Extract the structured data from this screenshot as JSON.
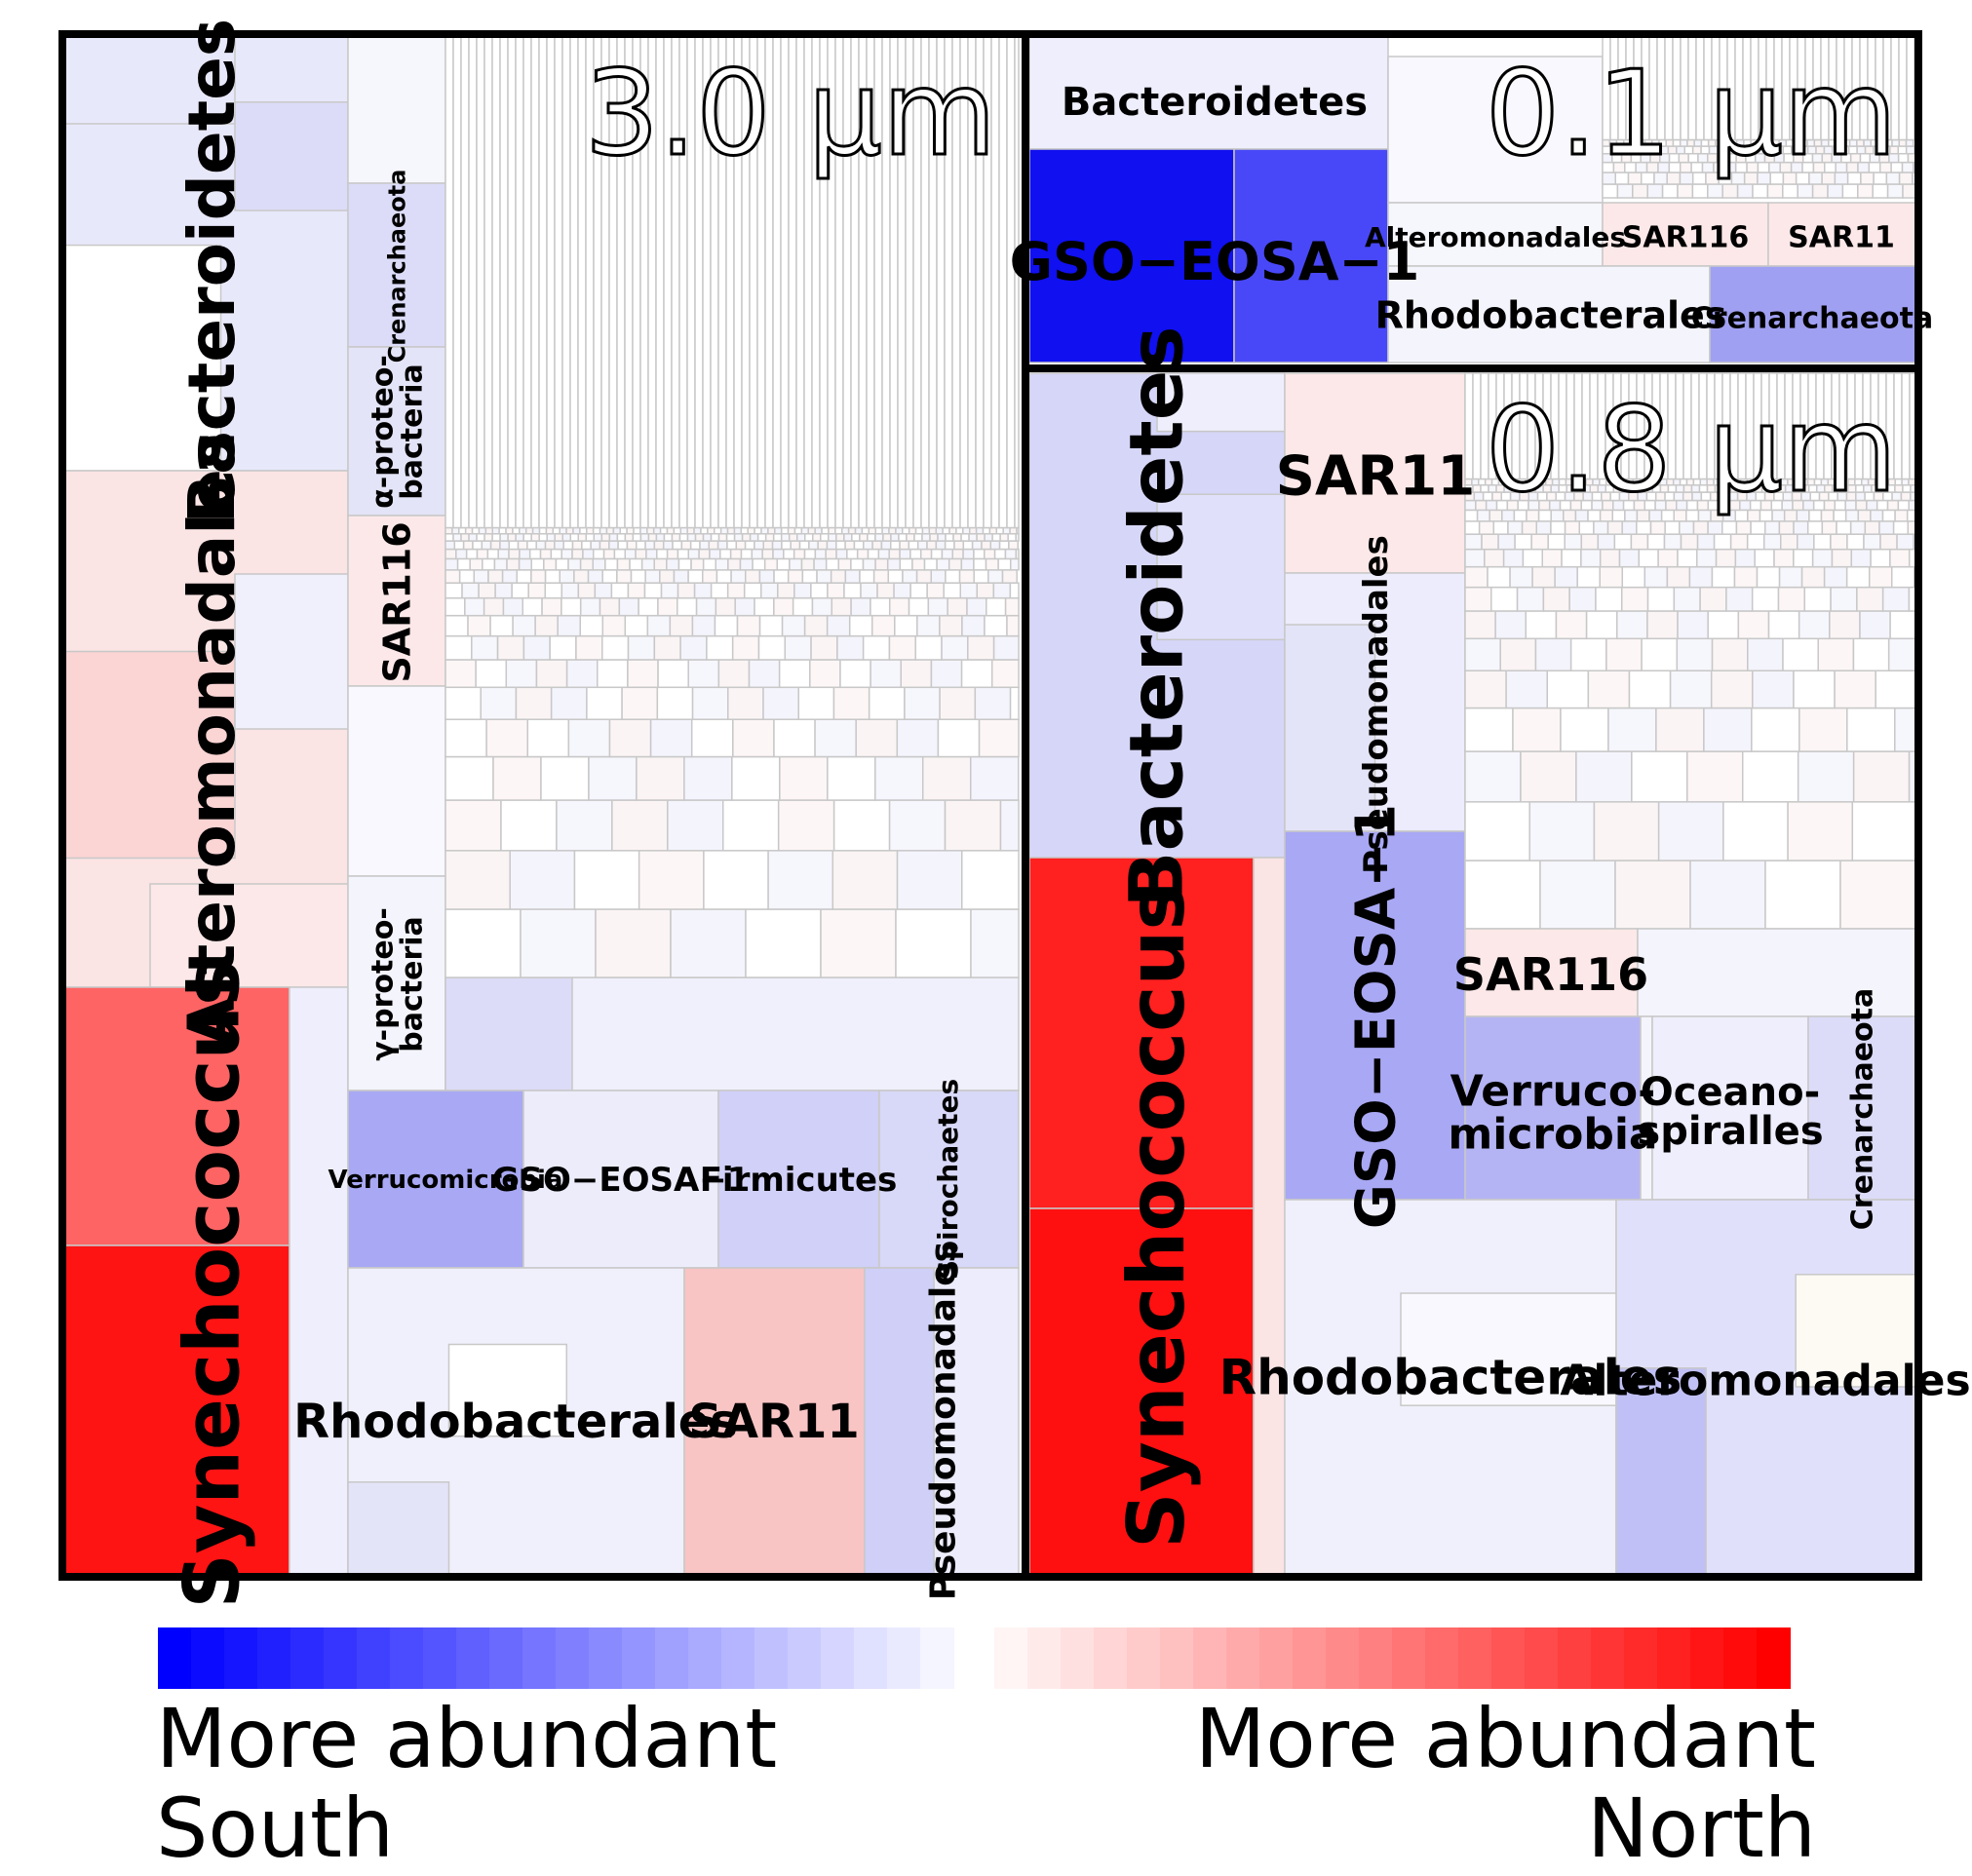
{
  "chart_data": {
    "type": "treemap",
    "title": "",
    "panels": [
      {
        "size_label": "3.0 µm",
        "taxa": [
          {
            "name": "Bacteroidetes",
            "color": "#e8e8fb"
          },
          {
            "name": "Alteromonadales",
            "color": "#fbe4e4"
          },
          {
            "name": "Synechococcus",
            "color": "#ff1414"
          },
          {
            "name": "Crenarchaeota",
            "color": "#dcdcf8"
          },
          {
            "name": "α-proteo-\nbacteria",
            "color": "#e4e4f8"
          },
          {
            "name": "SAR116",
            "color": "#fce8e8"
          },
          {
            "name": "γ-proteo-\nbacteria",
            "color": "#f4f4fd"
          },
          {
            "name": "Verrucomicrobia",
            "color": "#a8a8f4"
          },
          {
            "name": "GSO−EOSA−1",
            "color": "#ececfb"
          },
          {
            "name": "Firmicutes",
            "color": "#d0d0f8"
          },
          {
            "name": "Spirochaetes",
            "color": "#d8d8f8"
          },
          {
            "name": "Rhodobacterales",
            "color": "#f0f0fc"
          },
          {
            "name": "SAR11",
            "color": "#f9c4c4"
          },
          {
            "name": "Pseudomonadales",
            "color": "#ececfc"
          }
        ]
      },
      {
        "size_label": "0.1 µm",
        "taxa": [
          {
            "name": "Bacteroidetes",
            "color": "#eeeefc"
          },
          {
            "name": "GSO−EOSA−1",
            "color": "#1010f0"
          },
          {
            "name": "Alteromonadales",
            "color": "#f6f6fd"
          },
          {
            "name": "SAR116",
            "color": "#fce8e8"
          },
          {
            "name": "SAR11",
            "color": "#fce8e8"
          },
          {
            "name": "Rhodobacterales",
            "color": "#f4f4fd"
          },
          {
            "name": "Crenarchaeota",
            "color": "#a0a0f2"
          }
        ]
      },
      {
        "size_label": "0.8 µm",
        "taxa": [
          {
            "name": "Bacteroidetes",
            "color": "#d6d6f8"
          },
          {
            "name": "SAR11",
            "color": "#fce8e8"
          },
          {
            "name": "Pseudomonadales",
            "color": "#ececfc"
          },
          {
            "name": "Synechococcus",
            "color": "#ff1010"
          },
          {
            "name": "GSO−EOSA−1",
            "color": "#a8a8f4"
          },
          {
            "name": "SAR116",
            "color": "#fce8e8"
          },
          {
            "name": "Verruco-\nmicrobia",
            "color": "#b4b4f4"
          },
          {
            "name": "Oceano-\nspiralles",
            "color": "#eeeefc"
          },
          {
            "name": "Crenarchaeota",
            "color": "#dcdcf8"
          },
          {
            "name": "Rhodobacterales",
            "color": "#f0f0fc"
          },
          {
            "name": "Alteromonadales",
            "color": "#e0e0fa"
          }
        ]
      }
    ],
    "legend": {
      "left_label": "More abundant\nSouth",
      "right_label": "More abundant\nNorth",
      "left_color": "#0000ff",
      "right_color": "#ff0000"
    }
  }
}
